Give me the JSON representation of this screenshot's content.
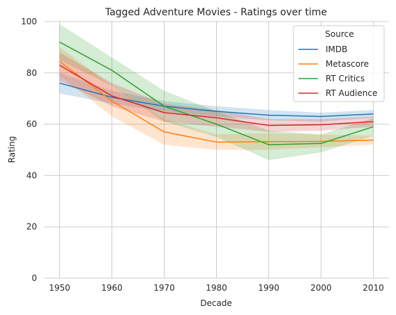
{
  "chart_data": {
    "type": "line",
    "title": "Tagged Adventure Movies - Ratings over time",
    "xlabel": "Decade",
    "ylabel": "Rating",
    "x": [
      1950,
      1960,
      1970,
      1980,
      1990,
      2000,
      2010
    ],
    "xticks": [
      "1950",
      "1960",
      "1970",
      "1980",
      "1990",
      "2000",
      "2010"
    ],
    "yticks": [
      "0",
      "20",
      "40",
      "60",
      "80",
      "100"
    ],
    "xlim": [
      1947,
      2013
    ],
    "ylim": [
      0,
      100
    ],
    "grid": true,
    "legend": {
      "title": "Source",
      "placement": "top-right"
    },
    "series": [
      {
        "name": "IMDB",
        "color": "#1f77b4",
        "values": [
          76,
          70.5,
          67,
          65,
          63.5,
          63,
          64
        ],
        "ci_low": [
          72,
          68,
          65,
          63,
          61.5,
          61,
          62.5
        ],
        "ci_high": [
          80,
          73,
          69,
          67,
          65.5,
          64.5,
          65.5
        ]
      },
      {
        "name": "Metascore",
        "color": "#ff7f0e",
        "values": [
          84.5,
          69,
          57,
          53,
          53.2,
          53.3,
          53.8
        ],
        "ci_low": [
          79,
          63,
          52,
          50,
          50,
          51,
          52
        ],
        "ci_high": [
          90,
          75,
          62,
          56,
          56.5,
          56,
          55.5
        ]
      },
      {
        "name": "RT Critics",
        "color": "#2ca02c",
        "values": [
          92,
          81,
          67,
          60,
          52,
          52.5,
          59
        ],
        "ci_low": [
          85,
          75,
          61,
          55,
          46,
          49,
          55.5
        ],
        "ci_high": [
          99,
          86,
          73,
          65,
          57.5,
          56,
          62.5
        ]
      },
      {
        "name": "RT Audience",
        "color": "#d62728",
        "values": [
          83,
          71,
          64.5,
          62.5,
          59.5,
          59.8,
          61
        ],
        "ci_low": [
          77,
          67,
          61,
          59,
          57,
          57.5,
          59
        ],
        "ci_high": [
          88,
          76,
          68,
          65.5,
          62,
          62,
          63
        ]
      }
    ]
  }
}
